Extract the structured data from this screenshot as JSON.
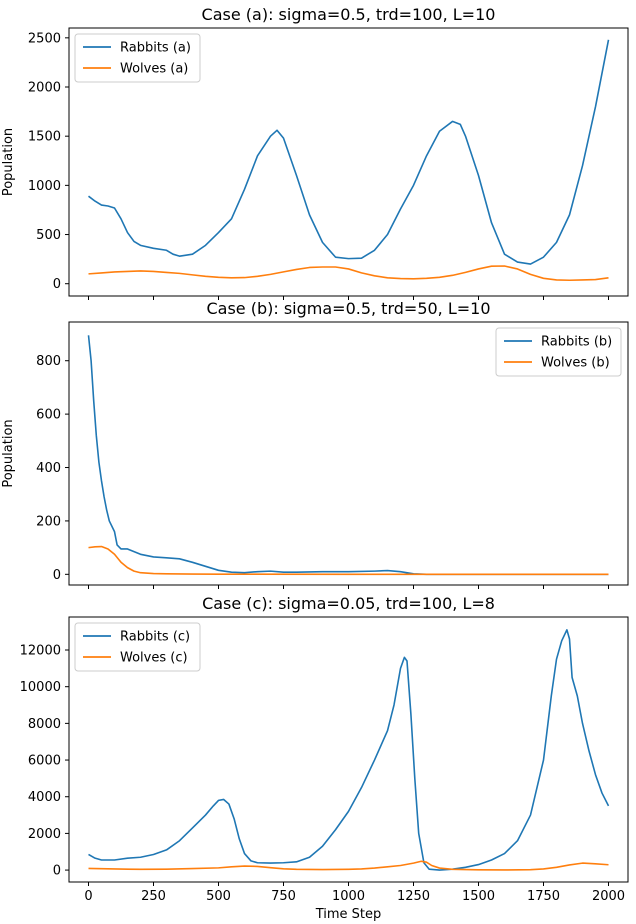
{
  "chart_data": [
    {
      "type": "line",
      "title": "Case (a): sigma=0.5, trd=100, L=10",
      "xlabel": "",
      "ylabel": "Population",
      "xlim": [
        -75,
        2075
      ],
      "ylim": [
        -125,
        2600
      ],
      "xticks": [
        0,
        250,
        500,
        750,
        1000,
        1250,
        1500,
        1750,
        2000
      ],
      "xtick_labels_visible": false,
      "yticks": [
        0,
        500,
        1000,
        1500,
        2000,
        2500
      ],
      "legend_position": "upper-left",
      "grid": false,
      "series": [
        {
          "name": "Rabbits (a)",
          "color": "#1f77b4",
          "points": [
            [
              0,
              890
            ],
            [
              25,
              840
            ],
            [
              50,
              800
            ],
            [
              75,
              790
            ],
            [
              100,
              770
            ],
            [
              125,
              660
            ],
            [
              150,
              520
            ],
            [
              175,
              430
            ],
            [
              200,
              390
            ],
            [
              250,
              360
            ],
            [
              300,
              340
            ],
            [
              325,
              300
            ],
            [
              350,
              280
            ],
            [
              400,
              300
            ],
            [
              450,
              390
            ],
            [
              500,
              520
            ],
            [
              550,
              660
            ],
            [
              600,
              960
            ],
            [
              650,
              1300
            ],
            [
              700,
              1500
            ],
            [
              725,
              1560
            ],
            [
              750,
              1480
            ],
            [
              800,
              1100
            ],
            [
              850,
              700
            ],
            [
              900,
              420
            ],
            [
              950,
              270
            ],
            [
              1000,
              255
            ],
            [
              1050,
              260
            ],
            [
              1100,
              340
            ],
            [
              1150,
              500
            ],
            [
              1200,
              760
            ],
            [
              1250,
              1000
            ],
            [
              1300,
              1300
            ],
            [
              1350,
              1550
            ],
            [
              1400,
              1650
            ],
            [
              1430,
              1620
            ],
            [
              1450,
              1500
            ],
            [
              1500,
              1100
            ],
            [
              1550,
              620
            ],
            [
              1600,
              300
            ],
            [
              1650,
              220
            ],
            [
              1700,
              200
            ],
            [
              1750,
              270
            ],
            [
              1800,
              420
            ],
            [
              1850,
              700
            ],
            [
              1900,
              1200
            ],
            [
              1950,
              1800
            ],
            [
              2000,
              2480
            ]
          ]
        },
        {
          "name": "Wolves (a)",
          "color": "#ff7f0e",
          "points": [
            [
              0,
              100
            ],
            [
              50,
              110
            ],
            [
              100,
              120
            ],
            [
              150,
              125
            ],
            [
              200,
              130
            ],
            [
              250,
              125
            ],
            [
              300,
              115
            ],
            [
              350,
              105
            ],
            [
              400,
              90
            ],
            [
              450,
              75
            ],
            [
              500,
              65
            ],
            [
              550,
              60
            ],
            [
              600,
              62
            ],
            [
              650,
              75
            ],
            [
              700,
              95
            ],
            [
              750,
              120
            ],
            [
              800,
              145
            ],
            [
              850,
              165
            ],
            [
              900,
              170
            ],
            [
              950,
              170
            ],
            [
              1000,
              150
            ],
            [
              1050,
              110
            ],
            [
              1100,
              80
            ],
            [
              1150,
              60
            ],
            [
              1200,
              52
            ],
            [
              1250,
              50
            ],
            [
              1300,
              55
            ],
            [
              1350,
              65
            ],
            [
              1400,
              85
            ],
            [
              1450,
              115
            ],
            [
              1500,
              150
            ],
            [
              1550,
              178
            ],
            [
              1600,
              180
            ],
            [
              1650,
              150
            ],
            [
              1700,
              95
            ],
            [
              1750,
              55
            ],
            [
              1800,
              38
            ],
            [
              1850,
              35
            ],
            [
              1900,
              38
            ],
            [
              1950,
              42
            ],
            [
              2000,
              60
            ]
          ]
        }
      ]
    },
    {
      "type": "line",
      "title": "Case (b): sigma=0.5, trd=50, L=10",
      "xlabel": "",
      "ylabel": "Population",
      "xlim": [
        -75,
        2075
      ],
      "ylim": [
        -40,
        945
      ],
      "xticks": [
        0,
        250,
        500,
        750,
        1000,
        1250,
        1500,
        1750,
        2000
      ],
      "xtick_labels_visible": false,
      "yticks": [
        0,
        200,
        400,
        600,
        800
      ],
      "legend_position": "upper-right",
      "grid": false,
      "series": [
        {
          "name": "Rabbits (b)",
          "color": "#1f77b4",
          "points": [
            [
              0,
              895
            ],
            [
              10,
              800
            ],
            [
              20,
              650
            ],
            [
              30,
              520
            ],
            [
              40,
              420
            ],
            [
              50,
              350
            ],
            [
              60,
              290
            ],
            [
              70,
              240
            ],
            [
              80,
              200
            ],
            [
              100,
              160
            ],
            [
              110,
              110
            ],
            [
              125,
              95
            ],
            [
              150,
              95
            ],
            [
              175,
              85
            ],
            [
              200,
              75
            ],
            [
              250,
              65
            ],
            [
              300,
              62
            ],
            [
              350,
              58
            ],
            [
              400,
              45
            ],
            [
              450,
              30
            ],
            [
              500,
              15
            ],
            [
              550,
              8
            ],
            [
              600,
              6
            ],
            [
              650,
              10
            ],
            [
              700,
              12
            ],
            [
              750,
              8
            ],
            [
              800,
              8
            ],
            [
              900,
              10
            ],
            [
              1000,
              10
            ],
            [
              1100,
              12
            ],
            [
              1150,
              14
            ],
            [
              1200,
              10
            ],
            [
              1250,
              2
            ],
            [
              1300,
              0
            ],
            [
              2000,
              0
            ]
          ]
        },
        {
          "name": "Wolves (b)",
          "color": "#ff7f0e",
          "points": [
            [
              0,
              100
            ],
            [
              25,
              103
            ],
            [
              50,
              104
            ],
            [
              75,
              95
            ],
            [
              100,
              75
            ],
            [
              125,
              45
            ],
            [
              150,
              25
            ],
            [
              175,
              12
            ],
            [
              200,
              6
            ],
            [
              250,
              3
            ],
            [
              300,
              2
            ],
            [
              400,
              1
            ],
            [
              500,
              0.5
            ],
            [
              1000,
              0.2
            ],
            [
              2000,
              0
            ]
          ]
        }
      ]
    },
    {
      "type": "line",
      "title": "Case (c): sigma=0.05, trd=100, L=8",
      "xlabel": "Time Step",
      "ylabel": "",
      "xlim": [
        -75,
        2075
      ],
      "ylim": [
        -650,
        13800
      ],
      "xticks": [
        0,
        250,
        500,
        750,
        1000,
        1250,
        1500,
        1750,
        2000
      ],
      "xtick_labels_visible": true,
      "yticks": [
        0,
        2000,
        4000,
        6000,
        8000,
        10000,
        12000
      ],
      "legend_position": "upper-left",
      "grid": false,
      "series": [
        {
          "name": "Rabbits (c)",
          "color": "#1f77b4",
          "points": [
            [
              0,
              850
            ],
            [
              25,
              650
            ],
            [
              50,
              550
            ],
            [
              100,
              550
            ],
            [
              150,
              650
            ],
            [
              200,
              700
            ],
            [
              250,
              850
            ],
            [
              300,
              1100
            ],
            [
              350,
              1600
            ],
            [
              400,
              2300
            ],
            [
              450,
              3000
            ],
            [
              480,
              3500
            ],
            [
              500,
              3800
            ],
            [
              520,
              3850
            ],
            [
              540,
              3600
            ],
            [
              560,
              2800
            ],
            [
              580,
              1700
            ],
            [
              600,
              900
            ],
            [
              625,
              500
            ],
            [
              650,
              400
            ],
            [
              700,
              380
            ],
            [
              750,
              400
            ],
            [
              800,
              450
            ],
            [
              850,
              700
            ],
            [
              900,
              1300
            ],
            [
              950,
              2200
            ],
            [
              1000,
              3200
            ],
            [
              1050,
              4500
            ],
            [
              1100,
              6000
            ],
            [
              1150,
              7600
            ],
            [
              1175,
              9000
            ],
            [
              1200,
              11000
            ],
            [
              1215,
              11600
            ],
            [
              1225,
              11400
            ],
            [
              1240,
              8500
            ],
            [
              1255,
              5000
            ],
            [
              1270,
              2000
            ],
            [
              1290,
              400
            ],
            [
              1310,
              50
            ],
            [
              1350,
              0
            ],
            [
              1400,
              50
            ],
            [
              1450,
              150
            ],
            [
              1500,
              300
            ],
            [
              1550,
              550
            ],
            [
              1600,
              900
            ],
            [
              1650,
              1600
            ],
            [
              1700,
              3000
            ],
            [
              1750,
              6000
            ],
            [
              1780,
              9500
            ],
            [
              1800,
              11500
            ],
            [
              1820,
              12500
            ],
            [
              1840,
              13100
            ],
            [
              1850,
              12600
            ],
            [
              1860,
              10500
            ],
            [
              1880,
              9500
            ],
            [
              1900,
              8000
            ],
            [
              1925,
              6500
            ],
            [
              1950,
              5200
            ],
            [
              1975,
              4200
            ],
            [
              2000,
              3500
            ]
          ]
        },
        {
          "name": "Wolves (c)",
          "color": "#ff7f0e",
          "points": [
            [
              0,
              90
            ],
            [
              100,
              60
            ],
            [
              200,
              40
            ],
            [
              300,
              50
            ],
            [
              400,
              80
            ],
            [
              500,
              120
            ],
            [
              550,
              180
            ],
            [
              600,
              220
            ],
            [
              650,
              200
            ],
            [
              700,
              130
            ],
            [
              750,
              70
            ],
            [
              800,
              40
            ],
            [
              900,
              30
            ],
            [
              1000,
              40
            ],
            [
              1050,
              60
            ],
            [
              1100,
              110
            ],
            [
              1150,
              180
            ],
            [
              1200,
              250
            ],
            [
              1250,
              380
            ],
            [
              1280,
              480
            ],
            [
              1300,
              430
            ],
            [
              1320,
              250
            ],
            [
              1350,
              110
            ],
            [
              1400,
              40
            ],
            [
              1500,
              15
            ],
            [
              1600,
              8
            ],
            [
              1700,
              20
            ],
            [
              1750,
              60
            ],
            [
              1800,
              150
            ],
            [
              1850,
              280
            ],
            [
              1900,
              380
            ],
            [
              1950,
              340
            ],
            [
              2000,
              290
            ]
          ]
        }
      ]
    }
  ]
}
